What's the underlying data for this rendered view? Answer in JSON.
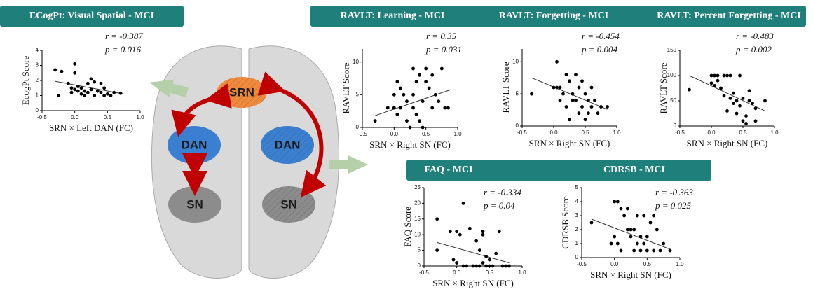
{
  "chart_data": [
    {
      "type": "scatter",
      "title": "ECogPt: Visual Spatial - MCI",
      "x_label": "SRN × Left DAN  (FC)",
      "y_label": "EcogPt Score",
      "annotations": [
        "r = -0.387",
        "p =  0.016"
      ],
      "color": "#000000",
      "x": [
        -0.3,
        -0.2,
        -0.25,
        -0.1,
        -0.05,
        0.0,
        0.0,
        0.0,
        0.05,
        0.05,
        0.1,
        0.1,
        0.15,
        0.2,
        0.2,
        0.25,
        0.25,
        0.3,
        0.3,
        0.35,
        0.4,
        0.4,
        0.45,
        0.5,
        0.55,
        0.6,
        0.7,
        0.45,
        0.15,
        -0.05
      ],
      "y": [
        2.7,
        2.6,
        1.0,
        1.8,
        1.2,
        3.1,
        1.4,
        2.5,
        1.6,
        1.3,
        1.5,
        1.1,
        1.3,
        1.8,
        1.2,
        2.1,
        1.4,
        1.9,
        1.0,
        1.3,
        1.8,
        1.2,
        1.0,
        1.1,
        1.0,
        1.2,
        1.15,
        1.5,
        1.0,
        1.5
      ],
      "trend": {
        "x": [
          -0.3,
          0.75
        ],
        "y": [
          1.95,
          1.1
        ]
      },
      "xlim": [
        -0.5,
        1.0
      ],
      "xticks": [
        -0.5,
        {
          "value": 0,
          "label": "0.0"
        },
        0.5,
        {
          "value": 1,
          "label": "1.0"
        }
      ],
      "ylim": [
        0,
        4
      ],
      "yticks": [
        0,
        1,
        2,
        3,
        4
      ]
    },
    {
      "type": "scatter",
      "title": "RAVLT: Learning - MCI",
      "x_label": "SRN × Right SN  (FC)",
      "y_label": "RAVLT Score",
      "annotations": [
        "r =  0.35",
        "p =  0.031"
      ],
      "color": "#000000",
      "x": [
        -0.3,
        -0.1,
        0.0,
        0.05,
        0.05,
        0.1,
        0.1,
        0.15,
        0.2,
        0.2,
        0.25,
        0.3,
        0.3,
        0.35,
        0.35,
        0.4,
        0.4,
        0.45,
        0.45,
        0.5,
        0.5,
        0.55,
        0.6,
        0.6,
        0.65,
        0.7,
        0.75,
        0.8,
        0.85,
        0.3,
        0.0
      ],
      "y": [
        1,
        3,
        3,
        2,
        7,
        6,
        3,
        5,
        4,
        1,
        0,
        3,
        5,
        7,
        2,
        8,
        1,
        4,
        0,
        7,
        9,
        6,
        3,
        8,
        5,
        4,
        9,
        3,
        3,
        9,
        5
      ],
      "trend": {
        "x": [
          -0.3,
          0.9
        ],
        "y": [
          1.8,
          5.8
        ]
      },
      "xlim": [
        -0.5,
        1.0
      ],
      "xticks": [
        -0.5,
        {
          "value": 0,
          "label": "0.0"
        },
        0.5,
        {
          "value": 1,
          "label": "1.0"
        }
      ],
      "ylim": [
        0,
        12
      ],
      "yticks": [
        0,
        5,
        10
      ]
    },
    {
      "type": "scatter",
      "title": "RAVLT: Forgetting - MCI",
      "x_label": "SRN × Right SN  (FC)",
      "y_label": "RAVLT Score",
      "annotations": [
        "r = -0.454",
        "p =  0.004"
      ],
      "color": "#000000",
      "x": [
        -0.35,
        0.0,
        0.05,
        0.05,
        0.1,
        0.15,
        0.2,
        0.2,
        0.25,
        0.3,
        0.3,
        0.35,
        0.35,
        0.4,
        0.4,
        0.45,
        0.45,
        0.5,
        0.5,
        0.55,
        0.55,
        0.6,
        0.6,
        0.65,
        0.7,
        0.75,
        0.85,
        0.25,
        0.1
      ],
      "y": [
        5,
        6,
        10,
        6,
        6,
        5,
        8,
        3,
        7,
        4,
        5,
        8,
        4,
        6,
        2,
        3,
        7,
        5,
        1,
        4,
        2,
        6,
        3,
        4,
        2,
        3,
        3,
        1,
        4
      ],
      "trend": {
        "x": [
          -0.35,
          0.85
        ],
        "y": [
          7.5,
          2.6
        ]
      },
      "xlim": [
        -0.5,
        1.0
      ],
      "xticks": [
        -0.5,
        {
          "value": 0,
          "label": "0.0"
        },
        0.5,
        {
          "value": 1,
          "label": "1.0"
        }
      ],
      "ylim": [
        0,
        12
      ],
      "yticks": [
        0,
        5,
        10
      ]
    },
    {
      "type": "scatter",
      "title": "RAVLT: Percent Forgetting - MCI",
      "x_label": "SRN × Right SN  (FC)",
      "y_label": "RAVLT Score",
      "annotations": [
        "r = -0.483",
        "p =  0.002"
      ],
      "color": "#000000",
      "x": [
        -0.35,
        0.0,
        0.0,
        0.05,
        0.05,
        0.1,
        0.1,
        0.15,
        0.2,
        0.2,
        0.25,
        0.25,
        0.3,
        0.3,
        0.35,
        0.35,
        0.4,
        0.4,
        0.45,
        0.45,
        0.5,
        0.5,
        0.55,
        0.6,
        0.6,
        0.65,
        0.7,
        0.7,
        0.55,
        0.85
      ],
      "y": [
        72,
        85,
        100,
        100,
        80,
        100,
        90,
        75,
        100,
        60,
        30,
        100,
        55,
        100,
        65,
        45,
        50,
        25,
        100,
        40,
        55,
        10,
        20,
        70,
        50,
        45,
        35,
        10,
        5,
        50
      ],
      "trend": {
        "x": [
          -0.35,
          0.85
        ],
        "y": [
          100,
          30
        ]
      },
      "xlim": [
        -0.5,
        1.0
      ],
      "xticks": [
        -0.5,
        {
          "value": 0,
          "label": "0.0"
        },
        0.5,
        {
          "value": 1,
          "label": "1.0"
        }
      ],
      "ylim": [
        0,
        150
      ],
      "yticks": [
        0,
        50,
        100,
        150
      ]
    },
    {
      "type": "scatter",
      "title": "FAQ - MCI",
      "x_label": "SRN × Right SN  (FC)",
      "y_label": "FAQ Score",
      "annotations": [
        "r = -0.334",
        "p =  0.04"
      ],
      "color": "#000000",
      "x": [
        -0.3,
        -0.3,
        -0.1,
        -0.05,
        0.0,
        0.05,
        0.1,
        0.1,
        0.15,
        0.2,
        0.25,
        0.3,
        0.3,
        0.35,
        0.35,
        0.4,
        0.4,
        0.45,
        0.45,
        0.5,
        0.5,
        0.55,
        0.6,
        0.65,
        0.7,
        0.75,
        0.8,
        0.0,
        0.4
      ],
      "y": [
        15,
        5,
        11,
        2,
        11,
        10,
        20,
        0,
        0,
        12,
        0,
        0,
        8,
        5,
        0,
        1,
        10,
        0,
        3,
        2,
        0,
        0,
        4,
        11,
        0,
        0,
        0,
        1,
        11
      ],
      "trend": {
        "x": [
          -0.3,
          0.8
        ],
        "y": [
          7.5,
          1
        ]
      },
      "xlim": [
        -0.5,
        1.0
      ],
      "xticks": [
        -0.5,
        {
          "value": 0,
          "label": "0.0"
        },
        0.5,
        {
          "value": 1,
          "label": "1.0"
        }
      ],
      "ylim": [
        0,
        25
      ],
      "yticks": [
        0,
        5,
        10,
        15,
        20,
        25
      ]
    },
    {
      "type": "scatter",
      "title": "CDRSB - MCI",
      "x_label": "SRN × Right SN  (FC)",
      "y_label": "CDRSB Score",
      "annotations": [
        "r = -0.363",
        "p =  0.025"
      ],
      "color": "#000000",
      "x": [
        -0.35,
        0.0,
        0.05,
        0.0,
        0.05,
        0.1,
        0.15,
        0.2,
        0.2,
        0.25,
        0.25,
        0.3,
        0.3,
        0.35,
        0.35,
        0.4,
        0.4,
        0.45,
        0.45,
        0.5,
        0.5,
        0.55,
        0.6,
        0.6,
        0.65,
        0.7,
        0.75,
        0.85,
        -0.05,
        0.1
      ],
      "y": [
        2.5,
        4,
        4,
        1.5,
        1,
        3.5,
        3,
        3.5,
        2,
        1.5,
        2,
        0.5,
        2,
        3,
        1,
        1.5,
        0.5,
        3,
        1,
        1.5,
        0.5,
        2.5,
        3,
        0.5,
        2,
        0.5,
        1,
        0.5,
        1,
        0.5
      ],
      "trend": {
        "x": [
          -0.35,
          0.85
        ],
        "y": [
          2.75,
          0.6
        ]
      },
      "xlim": [
        -0.5,
        1.0
      ],
      "xticks": [
        -0.5,
        {
          "value": 0,
          "label": "0.0"
        },
        0.5,
        {
          "value": 1,
          "label": "1.0"
        }
      ],
      "ylim": [
        0,
        5
      ],
      "yticks": [
        0,
        1,
        2,
        3,
        4,
        5
      ]
    }
  ],
  "diagram": {
    "nodes": [
      {
        "label": "SRN"
      },
      {
        "label": "DAN"
      },
      {
        "label": "DAN"
      },
      {
        "label": "SN"
      },
      {
        "label": "SN"
      }
    ]
  }
}
